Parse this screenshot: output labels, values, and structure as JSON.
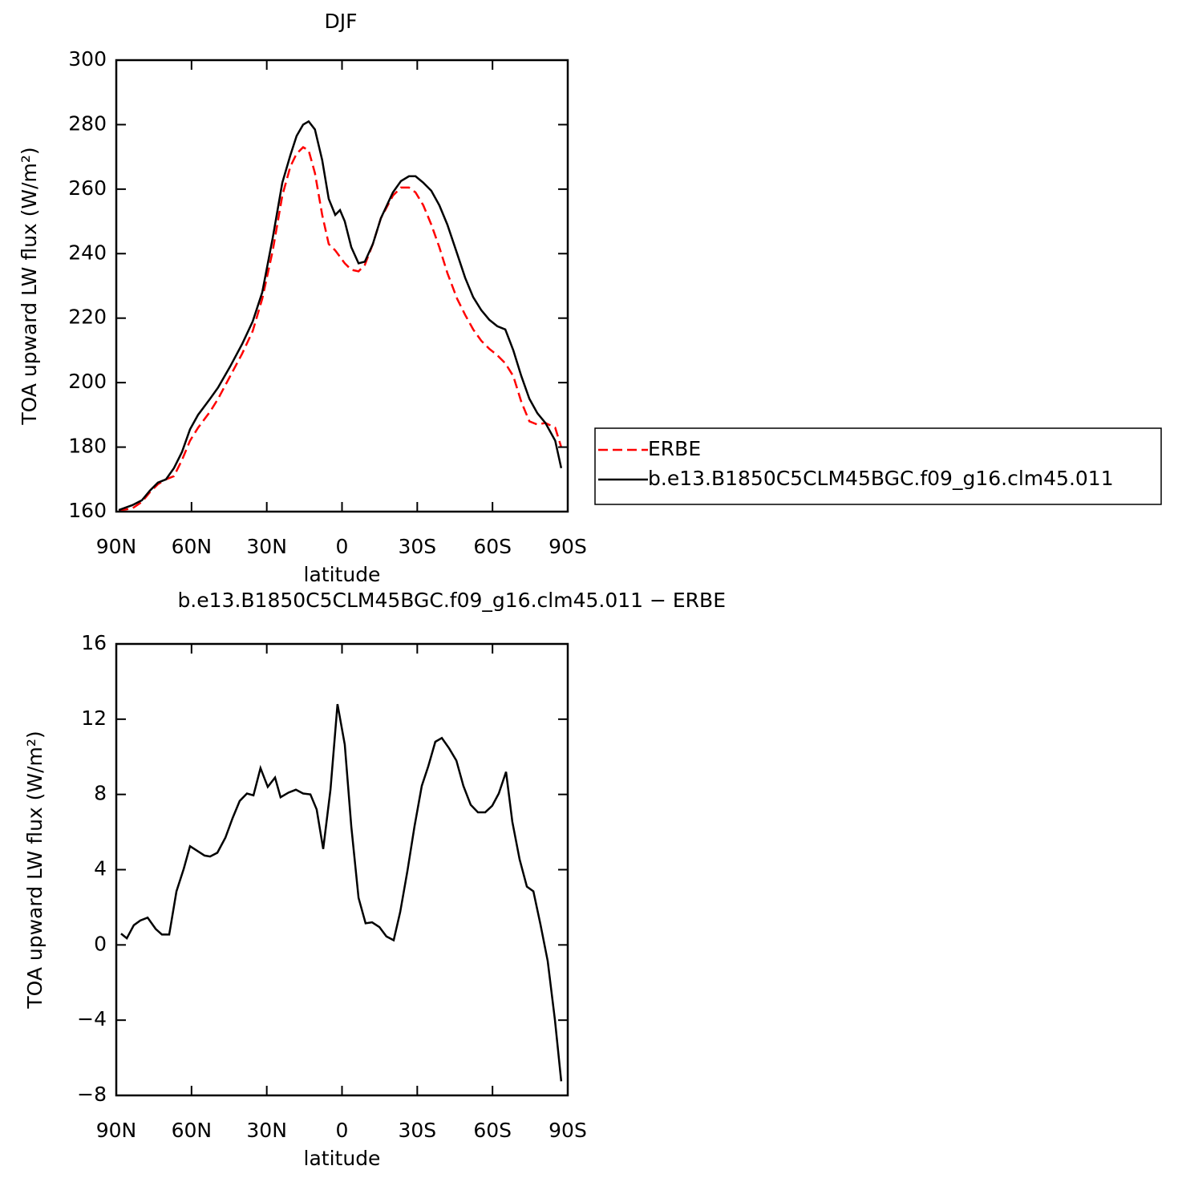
{
  "chart_data": [
    {
      "type": "line",
      "title": "DJF",
      "x_label": "latitude",
      "y_label": "TOA upward LW flux (W/m²)",
      "x": [
        89.0,
        83.6,
        79.8,
        76.6,
        73.4,
        70.2,
        67.0,
        63.8,
        60.6,
        57.4,
        52.6,
        49.4,
        44.6,
        39.8,
        35.6,
        31.8,
        27.6,
        23.8,
        20.6,
        18.1,
        15.5,
        13.3,
        10.8,
        7.9,
        5.3,
        2.7,
        0.8,
        -1.1,
        -3.7,
        -6.6,
        -9.1,
        -12.3,
        -15.5,
        -20.3,
        -23.5,
        -26.7,
        -29.3,
        -32.4,
        -35.6,
        -38.8,
        -42.0,
        -45.9,
        -49.1,
        -52.3,
        -55.5,
        -58.7,
        -61.9,
        -65.1,
        -68.3,
        -71.5,
        -74.7,
        -77.9,
        -81.1,
        -85.0,
        -87.4
      ],
      "series": [
        {
          "name": "ERBE",
          "color": "#ff0000",
          "dash": "dashed",
          "values": [
            160.3,
            161,
            163,
            166,
            168.5,
            170,
            171,
            176,
            182,
            186,
            191,
            195,
            202,
            209,
            216,
            226,
            241,
            258,
            267,
            271,
            273,
            272,
            265,
            252,
            243,
            241,
            239,
            237,
            235,
            234.5,
            236.5,
            243,
            251,
            258,
            260.5,
            260.5,
            259,
            255,
            249,
            242,
            234,
            226,
            221,
            216.5,
            213,
            210.5,
            208.5,
            206,
            202,
            194,
            188,
            187,
            187.5,
            186,
            180
          ]
        },
        {
          "name": "b.e13.B1850C5CLM45BGC.f09_g16.clm45.011",
          "color": "#000000",
          "dash": "solid",
          "values": [
            160.5,
            162,
            163.5,
            166.5,
            169,
            170,
            173.5,
            178.5,
            185.5,
            190,
            195,
            198.5,
            205,
            212,
            219,
            228,
            245,
            262,
            270.5,
            276.5,
            280,
            281,
            278.5,
            269,
            257,
            252,
            253.5,
            250,
            242,
            237,
            237.5,
            243,
            251,
            259,
            262.5,
            264,
            264,
            262,
            259.5,
            255,
            249,
            240,
            232.5,
            226.5,
            222.5,
            219.5,
            217.5,
            216.5,
            210,
            202,
            195,
            190.5,
            187.5,
            182,
            173.5
          ]
        }
      ],
      "xlim": [
        90,
        -90
      ],
      "ylim": [
        160,
        300
      ],
      "xticks": [
        {
          "value": 90,
          "label": "90N"
        },
        {
          "value": 60,
          "label": "60N"
        },
        {
          "value": 30,
          "label": "30N"
        },
        0,
        {
          "value": -30,
          "label": "30S"
        },
        {
          "value": -60,
          "label": "60S"
        },
        {
          "value": -90,
          "label": "90S"
        }
      ],
      "yticks": [
        160,
        180,
        200,
        220,
        240,
        260,
        280,
        300
      ],
      "legend": "right"
    },
    {
      "type": "line",
      "title": "b.e13.B1850C5CLM45BGC.f09_g16.clm45.011 − ERBE",
      "x_label": "latitude",
      "y_label": "TOA upward LW flux (W/m²)",
      "x": [
        88.1,
        85.8,
        83.0,
        80.4,
        77.5,
        74.3,
        71.8,
        68.9,
        66.0,
        63.1,
        60.6,
        57.7,
        54.8,
        52.6,
        49.7,
        46.5,
        43.6,
        40.8,
        37.9,
        35.3,
        32.5,
        29.6,
        26.7,
        24.5,
        21.3,
        18.4,
        15.5,
        12.6,
        10.1,
        7.5,
        4.6,
        1.8,
        -1.1,
        -3.7,
        -6.6,
        -9.4,
        -12.0,
        -14.9,
        -17.7,
        -20.6,
        -23.2,
        -26.1,
        -28.9,
        -31.8,
        -34.4,
        -37.2,
        -39.8,
        -42.7,
        -45.6,
        -48.4,
        -51.3,
        -54.2,
        -57.1,
        -59.9,
        -62.5,
        -65.4,
        -67.9,
        -70.8,
        -73.7,
        -76.3,
        -79.1,
        -82.0,
        -84.9,
        -87.4
      ],
      "values": [
        0.6,
        0.35,
        1.05,
        1.3,
        1.45,
        0.85,
        0.55,
        0.55,
        2.85,
        4.05,
        5.25,
        5.0,
        4.75,
        4.7,
        4.9,
        5.7,
        6.75,
        7.65,
        8.05,
        7.95,
        9.4,
        8.4,
        8.9,
        7.85,
        8.1,
        8.25,
        8.05,
        8.0,
        7.2,
        5.1,
        8.25,
        12.8,
        10.65,
        6.3,
        2.5,
        1.15,
        1.2,
        0.95,
        0.45,
        0.25,
        1.75,
        3.95,
        6.3,
        8.45,
        9.5,
        10.8,
        11.0,
        10.45,
        9.8,
        8.45,
        7.45,
        7.05,
        7.05,
        7.4,
        8.05,
        9.2,
        6.55,
        4.55,
        3.1,
        2.85,
        1.1,
        -0.85,
        -4.0,
        -7.25
      ],
      "color": "#000000",
      "xlim": [
        90,
        -90
      ],
      "ylim": [
        -8,
        16
      ],
      "xticks": [
        {
          "value": 90,
          "label": "90N"
        },
        {
          "value": 60,
          "label": "60N"
        },
        {
          "value": 30,
          "label": "30N"
        },
        0,
        {
          "value": -30,
          "label": "30S"
        },
        {
          "value": -60,
          "label": "60S"
        },
        {
          "value": -90,
          "label": "90S"
        }
      ],
      "yticks": [
        16,
        12,
        8,
        4,
        0,
        {
          "value": -4,
          "label": "−4"
        },
        {
          "value": -8,
          "label": "−8"
        }
      ]
    }
  ]
}
